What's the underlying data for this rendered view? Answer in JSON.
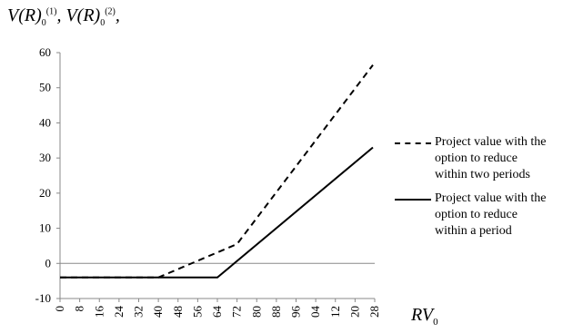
{
  "title": {
    "prefix_1": "V(R)",
    "sub_1": "0",
    "sup_1": "(1)",
    "sep_1": ", ",
    "prefix_2": "V(R)",
    "sub_2": "0",
    "sup_2": "(2)",
    "sep_2": ","
  },
  "xlabel": {
    "main": "RV",
    "sub": "0"
  },
  "chart_data": {
    "type": "line",
    "title": "",
    "xlabel": "RV0",
    "ylabel": "V(R)0(1), V(R)0(2),",
    "ylim": [
      -10,
      60
    ],
    "xlim": [
      0,
      128
    ],
    "yticks": [
      -10,
      0,
      10,
      20,
      30,
      40,
      50,
      60
    ],
    "x_tick_labels": [
      "0",
      "8",
      "16",
      "24",
      "32",
      "40",
      "48",
      "56",
      "64",
      "72",
      "80",
      "88",
      "96",
      "04",
      "12",
      "20",
      "28"
    ],
    "grid": false,
    "legend_position": "right",
    "series": [
      {
        "name": "Project value with the option to reduce within two periods",
        "style": "dashed",
        "color": "#000000",
        "x": [
          0,
          40,
          72,
          132
        ],
        "y": [
          -4,
          -4,
          5.5,
          56.5
        ]
      },
      {
        "name": "Project value with the option to reduce within a period",
        "style": "solid",
        "color": "#000000",
        "x": [
          0,
          64,
          132
        ],
        "y": [
          -4,
          -4,
          33
        ]
      }
    ]
  },
  "legend": [
    {
      "style": "dashed",
      "label_lines": [
        "Project value with the",
        "option to reduce",
        "within two periods"
      ]
    },
    {
      "style": "solid",
      "label_lines": [
        "Project value with the",
        "option to reduce",
        "within a period"
      ]
    }
  ]
}
